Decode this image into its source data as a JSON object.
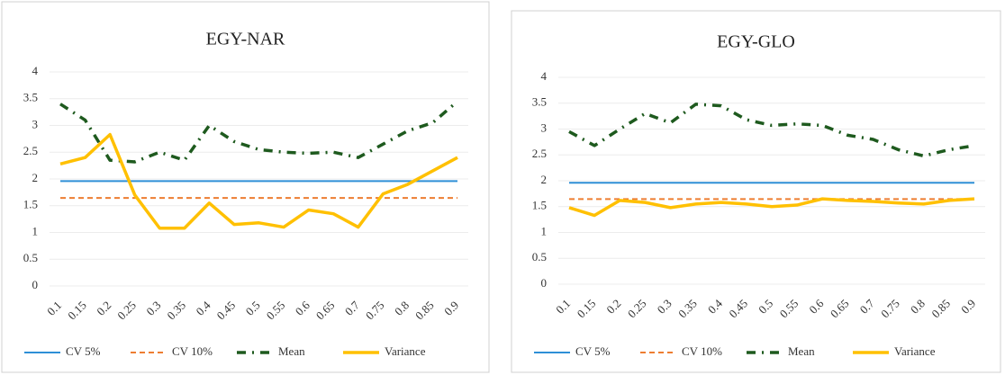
{
  "chart_data": [
    {
      "type": "line",
      "title": "EGY-NAR",
      "categories": [
        "0.1",
        "0.15",
        "0.2",
        "0.25",
        "0.3",
        "0.35",
        "0.4",
        "0.45",
        "0.5",
        "0.55",
        "0.6",
        "0.65",
        "0.7",
        "0.75",
        "0.8",
        "0.85",
        "0.9"
      ],
      "ylim": [
        0,
        4
      ],
      "yticks": [
        0,
        0.5,
        1,
        1.5,
        2,
        2.5,
        3,
        3.5,
        4
      ],
      "grid": true,
      "legend": "bottom",
      "series": [
        {
          "name": "CV 5%",
          "color": "#2e8fd6",
          "style": "solid",
          "values": [
            1.96,
            1.96,
            1.96,
            1.96,
            1.96,
            1.96,
            1.96,
            1.96,
            1.96,
            1.96,
            1.96,
            1.96,
            1.96,
            1.96,
            1.96,
            1.96,
            1.96
          ]
        },
        {
          "name": "CV 10%",
          "color": "#ed7d31",
          "style": "dashed",
          "values": [
            1.645,
            1.645,
            1.645,
            1.645,
            1.645,
            1.645,
            1.645,
            1.645,
            1.645,
            1.645,
            1.645,
            1.645,
            1.645,
            1.645,
            1.645,
            1.645,
            1.645
          ]
        },
        {
          "name": "Mean",
          "color": "#1e5a1e",
          "style": "dashdot",
          "values": [
            3.4,
            3.1,
            2.35,
            2.32,
            2.5,
            2.35,
            3.0,
            2.7,
            2.55,
            2.5,
            2.48,
            2.5,
            2.4,
            2.65,
            2.9,
            3.05,
            3.45
          ]
        },
        {
          "name": "Variance",
          "color": "#ffc000",
          "style": "bold",
          "values": [
            2.28,
            2.4,
            2.83,
            1.7,
            1.08,
            1.08,
            1.55,
            1.15,
            1.18,
            1.1,
            1.42,
            1.35,
            1.1,
            1.72,
            1.9,
            2.15,
            2.4
          ]
        }
      ]
    },
    {
      "type": "line",
      "title": "EGY-GLO",
      "categories": [
        "0.1",
        "0.15",
        "0.2",
        "0.25",
        "0.3",
        "0.35",
        "0.4",
        "0.45",
        "0.5",
        "0.55",
        "0.6",
        "0.65",
        "0.7",
        "0.75",
        "0.8",
        "0.85",
        "0.9"
      ],
      "ylim": [
        0,
        4
      ],
      "yticks": [
        0,
        0.5,
        1,
        1.5,
        2,
        2.5,
        3,
        3.5,
        4
      ],
      "grid": true,
      "legend": "bottom",
      "series": [
        {
          "name": "CV 5%",
          "color": "#2e8fd6",
          "style": "solid",
          "values": [
            1.96,
            1.96,
            1.96,
            1.96,
            1.96,
            1.96,
            1.96,
            1.96,
            1.96,
            1.96,
            1.96,
            1.96,
            1.96,
            1.96,
            1.96,
            1.96,
            1.96
          ]
        },
        {
          "name": "CV 10%",
          "color": "#ed7d31",
          "style": "dashed",
          "values": [
            1.645,
            1.645,
            1.645,
            1.645,
            1.645,
            1.645,
            1.645,
            1.645,
            1.645,
            1.645,
            1.645,
            1.645,
            1.645,
            1.645,
            1.645,
            1.645,
            1.645
          ]
        },
        {
          "name": "Mean",
          "color": "#1e5a1e",
          "style": "dashdot",
          "values": [
            2.95,
            2.68,
            3.0,
            3.3,
            3.12,
            3.48,
            3.45,
            3.18,
            3.07,
            3.1,
            3.07,
            2.88,
            2.8,
            2.6,
            2.48,
            2.6,
            2.68
          ]
        },
        {
          "name": "Variance",
          "color": "#ffc000",
          "style": "bold",
          "values": [
            1.48,
            1.33,
            1.62,
            1.58,
            1.48,
            1.55,
            1.58,
            1.55,
            1.5,
            1.53,
            1.65,
            1.62,
            1.6,
            1.57,
            1.55,
            1.62,
            1.65
          ]
        }
      ]
    }
  ]
}
